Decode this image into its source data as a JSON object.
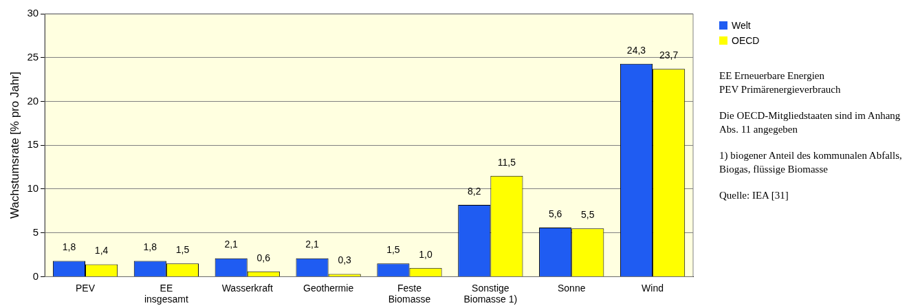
{
  "chart_data": {
    "type": "bar",
    "ylabel": "Wachstumsrate [% pro Jahr]",
    "categories": [
      "PEV",
      "EE insgesamt",
      "Wasserkraft",
      "Geothermie",
      "Feste Biomasse",
      "Sonstige Biomasse 1)",
      "Sonne",
      "Wind"
    ],
    "series": [
      {
        "name": "Welt",
        "color": "#1f5cf2",
        "values": [
          1.8,
          1.8,
          2.1,
          2.1,
          1.5,
          8.2,
          5.6,
          24.3
        ],
        "value_labels": [
          "1,8",
          "1,8",
          "2,1",
          "2,1",
          "1,5",
          "8,2",
          "5,6",
          "24,3"
        ]
      },
      {
        "name": "OECD",
        "color": "#ffff00",
        "values": [
          1.4,
          1.5,
          0.6,
          0.3,
          1.0,
          11.5,
          5.5,
          23.7
        ],
        "value_labels": [
          "1,4",
          "1,5",
          "0,6",
          "0,3",
          "1,0",
          "11,5",
          "5,5",
          "23,7"
        ]
      }
    ],
    "ylim": [
      0,
      30
    ],
    "yticks": [
      0,
      5,
      10,
      15,
      20,
      25,
      30
    ],
    "grid": "y",
    "legend": "top right",
    "annotations": [
      "EE Erneuerbare Energien\nPEV Primärenergieverbrauch",
      "Die OECD-Mitgliedstaaten sind im Anhang Abs. 11 angegeben",
      "1) biogener Anteil des kommunalen Abfalls, Biogas, flüssige Biomasse",
      "Quelle: IEA [31]"
    ]
  }
}
